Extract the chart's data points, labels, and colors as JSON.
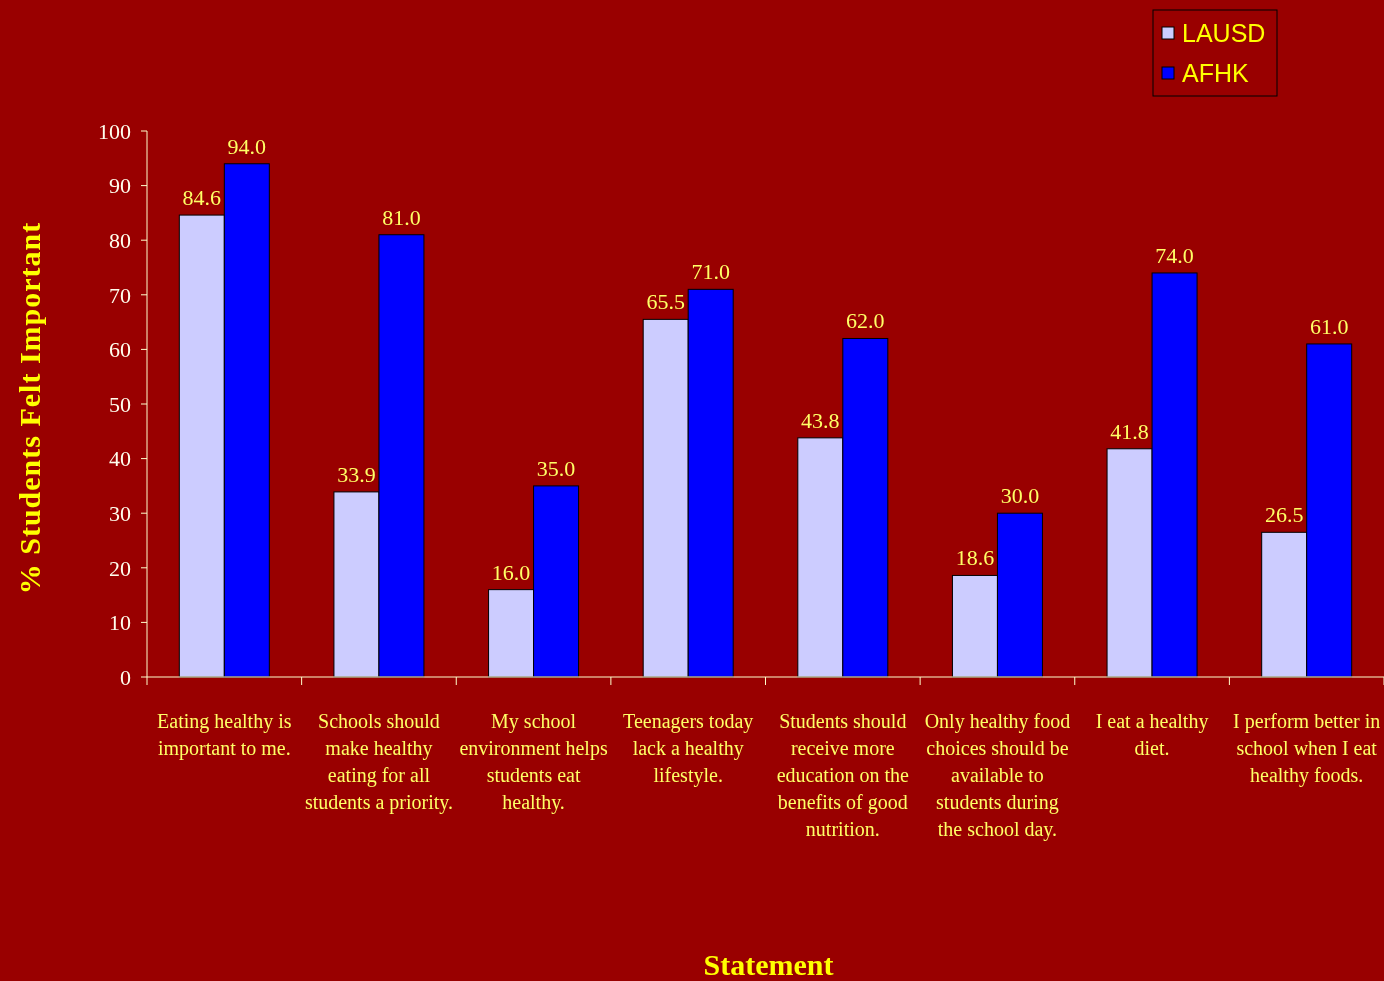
{
  "chart_data": {
    "type": "bar",
    "xlabel": "Statement",
    "ylabel": "% Students Felt Important",
    "categories": [
      "Eating healthy is important to me.",
      "Schools should make healthy eating for all students a priority.",
      "My school environment helps students eat healthy.",
      "Teenagers today lack a healthy lifestyle.",
      "Students should receive more education on the benefits of good nutrition.",
      "Only healthy food choices should be available to students during the school day.",
      "I eat a healthy diet.",
      "I perform better in school when I eat healthy foods."
    ],
    "series": [
      {
        "name": "LAUSD",
        "color": "#ccccff",
        "values": [
          84.6,
          33.9,
          16.0,
          65.5,
          43.8,
          18.6,
          41.8,
          26.5
        ],
        "value_labels": [
          "84.6",
          "33.9",
          "16.0",
          "65.5",
          "43.8",
          "18.6",
          "41.8",
          "26.5"
        ]
      },
      {
        "name": "AFHK",
        "color": "#0000ff",
        "values": [
          94.0,
          81.0,
          35.0,
          71.0,
          62.0,
          30.0,
          74.0,
          61.0
        ],
        "value_labels": [
          "94.0",
          "81.0",
          "35.0",
          "71.0",
          "62.0",
          "30.0",
          "74.0",
          "61.0"
        ]
      }
    ],
    "ylim": [
      0,
      100
    ],
    "yticks": [
      0,
      10,
      20,
      30,
      40,
      50,
      60,
      70,
      80,
      90,
      100
    ],
    "grid": false,
    "legend": "top right"
  }
}
